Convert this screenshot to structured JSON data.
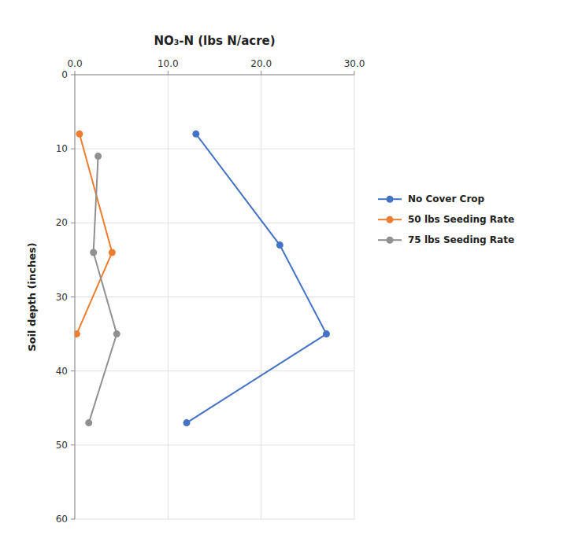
{
  "chart_data": {
    "type": "line",
    "title": "NO₃-N (lbs N/acre)",
    "ylabel": "Soil depth (inches)",
    "xlim": [
      0,
      30
    ],
    "ylim": [
      60,
      0
    ],
    "xticks": [
      {
        "value": 0,
        "label": "0.0"
      },
      {
        "value": 10,
        "label": "10.0"
      },
      {
        "value": 20,
        "label": "20.0"
      },
      {
        "value": 30,
        "label": "30.0"
      }
    ],
    "yticks": [
      0,
      10,
      20,
      30,
      40,
      50,
      60
    ],
    "series": [
      {
        "name": "No Cover Crop",
        "color": "#4472C4",
        "x": [
          13.0,
          22.0,
          27.0,
          12.0
        ],
        "values": [
          8,
          23,
          35,
          47
        ]
      },
      {
        "name": "50 lbs Seeding Rate",
        "color": "#ED7D31",
        "x": [
          0.5,
          4.0,
          0.2
        ],
        "values": [
          8,
          24,
          35
        ]
      },
      {
        "name": "75 lbs Seeding Rate",
        "color": "#909090",
        "x": [
          2.5,
          2.0,
          4.5,
          1.5
        ],
        "values": [
          11,
          24,
          35,
          47
        ]
      }
    ],
    "marker": "circle",
    "grid": true,
    "legend": "right"
  }
}
